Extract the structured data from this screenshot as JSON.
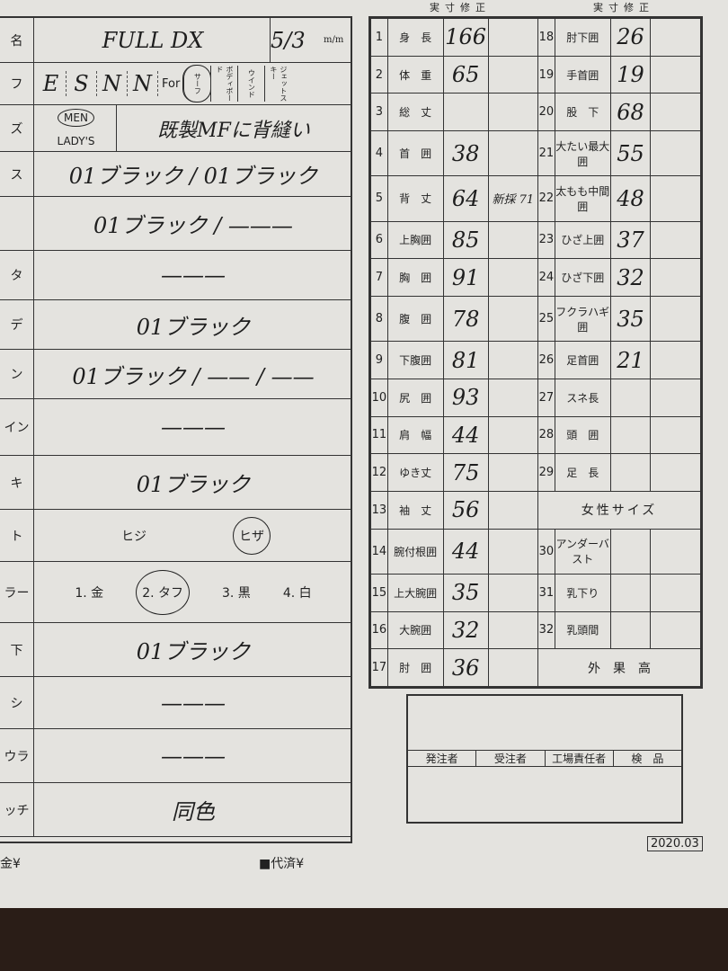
{
  "left": {
    "model": "FULL DX",
    "date": "5/3",
    "date_unit": "m/m",
    "brand_letters": [
      "E",
      "S",
      "N",
      "N"
    ],
    "for_label": "For",
    "uses": [
      "サーフ",
      "ボディボード",
      "ウインド",
      "ジェットスキー"
    ],
    "use_selected": "サーフ",
    "gender": [
      "MEN",
      "LADY'S"
    ],
    "gender_selected": "MEN",
    "size_note": "既製MFに背縫い",
    "rows": [
      {
        "label": "ス",
        "value": "01ブラック / 01ブラック"
      },
      {
        "label": "",
        "value": "01ブラック / ———"
      },
      {
        "label": "タ",
        "value": "———"
      },
      {
        "label": "デ",
        "value": "01ブラック"
      },
      {
        "label": "ン",
        "value": "01ブラック / —— / ——"
      },
      {
        "label": "イン",
        "value": "———"
      },
      {
        "label": "キ",
        "value": "01ブラック"
      }
    ],
    "pad": {
      "label": "ト",
      "options": [
        "ヒジ",
        "ヒザ"
      ],
      "selected": "ヒザ"
    },
    "color": {
      "label": "ラー",
      "options": [
        "1. 金",
        "2. タフ",
        "3. 黒",
        "4. 白"
      ],
      "selected": "2. タフ"
    },
    "rows2": [
      {
        "label": "下",
        "value": "01ブラック"
      },
      {
        "label": "シ",
        "value": "———"
      },
      {
        "label": "ウラ",
        "value": "———"
      },
      {
        "label": "ッチ",
        "value": "同色"
      }
    ]
  },
  "right": {
    "header": "実寸修正",
    "rows_a": [
      {
        "n": "1",
        "l": "身　長",
        "v": "166",
        "c": ""
      },
      {
        "n": "2",
        "l": "体　重",
        "v": "65",
        "c": ""
      },
      {
        "n": "3",
        "l": "総　丈",
        "v": "",
        "c": ""
      },
      {
        "n": "4",
        "l": "首　囲",
        "v": "38",
        "c": ""
      },
      {
        "n": "5",
        "l": "背　丈",
        "v": "64",
        "c": "新採 71"
      },
      {
        "n": "6",
        "l": "上胸囲",
        "v": "85",
        "c": ""
      },
      {
        "n": "7",
        "l": "胸　囲",
        "v": "91",
        "c": ""
      },
      {
        "n": "8",
        "l": "腹　囲",
        "v": "78",
        "c": ""
      },
      {
        "n": "9",
        "l": "下腹囲",
        "v": "81",
        "c": ""
      },
      {
        "n": "10",
        "l": "尻　囲",
        "v": "93",
        "c": ""
      },
      {
        "n": "11",
        "l": "肩　幅",
        "v": "44",
        "c": ""
      },
      {
        "n": "12",
        "l": "ゆき丈",
        "v": "75",
        "c": ""
      },
      {
        "n": "13",
        "l": "袖　丈",
        "v": "56",
        "c": ""
      },
      {
        "n": "14",
        "l": "腕付根囲",
        "v": "44",
        "c": ""
      },
      {
        "n": "15",
        "l": "上大腕囲",
        "v": "35",
        "c": ""
      },
      {
        "n": "16",
        "l": "大腕囲",
        "v": "32",
        "c": ""
      },
      {
        "n": "17",
        "l": "肘　囲",
        "v": "36",
        "c": ""
      }
    ],
    "rows_b": [
      {
        "n": "18",
        "l": "肘下囲",
        "v": "26"
      },
      {
        "n": "19",
        "l": "手首囲",
        "v": "19"
      },
      {
        "n": "20",
        "l": "股　下",
        "v": "68"
      },
      {
        "n": "21",
        "l": "大たい最大囲",
        "v": "55"
      },
      {
        "n": "22",
        "l": "太もも中間囲",
        "v": "48"
      },
      {
        "n": "23",
        "l": "ひざ上囲",
        "v": "37"
      },
      {
        "n": "24",
        "l": "ひざ下囲",
        "v": "32"
      },
      {
        "n": "25",
        "l": "フクラハギ囲",
        "v": "35"
      },
      {
        "n": "26",
        "l": "足首囲",
        "v": "21"
      },
      {
        "n": "27",
        "l": "スネ長",
        "v": ""
      },
      {
        "n": "28",
        "l": "頭　囲",
        "v": ""
      },
      {
        "n": "29",
        "l": "足　長",
        "v": ""
      }
    ],
    "women_title": "女性サイズ",
    "rows_c": [
      {
        "n": "30",
        "l": "アンダーバスト",
        "v": ""
      },
      {
        "n": "31",
        "l": "乳下り",
        "v": ""
      },
      {
        "n": "32",
        "l": "乳頭間",
        "v": ""
      }
    ],
    "footer_title": "外　果　高"
  },
  "approval": [
    "発注者",
    "受注者",
    "工場責任者",
    "検　品"
  ],
  "version": "2020.03",
  "footer": {
    "deposit": "金¥",
    "paid": "■代済¥"
  }
}
